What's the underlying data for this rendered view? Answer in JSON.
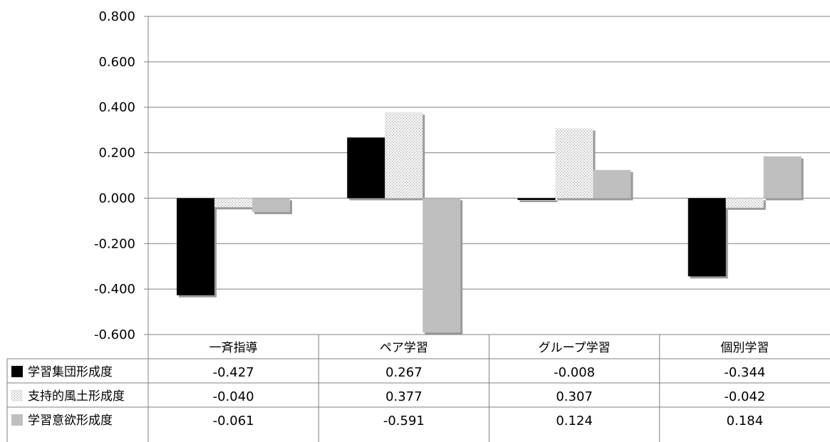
{
  "chart_data": {
    "type": "bar",
    "title": "",
    "xlabel": "",
    "ylabel": "",
    "ylim": [
      -0.6,
      0.8
    ],
    "yticks": [
      "0.800",
      "0.600",
      "0.400",
      "0.200",
      "0.000",
      "-0.200",
      "-0.400",
      "-0.600"
    ],
    "ytick_values": [
      0.8,
      0.6,
      0.4,
      0.2,
      0.0,
      -0.2,
      -0.4,
      -0.6
    ],
    "grid": true,
    "legend_placement": "data-table-left",
    "categories": [
      "一斉指導",
      "ペア学習",
      "グループ学習",
      "個別学習"
    ],
    "series": [
      {
        "name": "学習集団形成度",
        "values": [
          -0.427,
          0.267,
          -0.008,
          -0.344
        ],
        "labels": [
          "-0.427",
          "0.267",
          "-0.008",
          "-0.344"
        ],
        "color": "#000000",
        "pattern": "solid"
      },
      {
        "name": "支持的風土形成度",
        "values": [
          -0.04,
          0.377,
          0.307,
          -0.042
        ],
        "labels": [
          "-0.040",
          "0.377",
          "0.307",
          "-0.042"
        ],
        "color": "#e6e6e6",
        "pattern": "dotted"
      },
      {
        "name": "学習意欲形成度",
        "values": [
          -0.061,
          -0.591,
          0.124,
          0.184
        ],
        "labels": [
          "-0.061",
          "-0.591",
          "0.124",
          "0.184"
        ],
        "color": "#bfbfbf",
        "pattern": "solid"
      }
    ]
  }
}
